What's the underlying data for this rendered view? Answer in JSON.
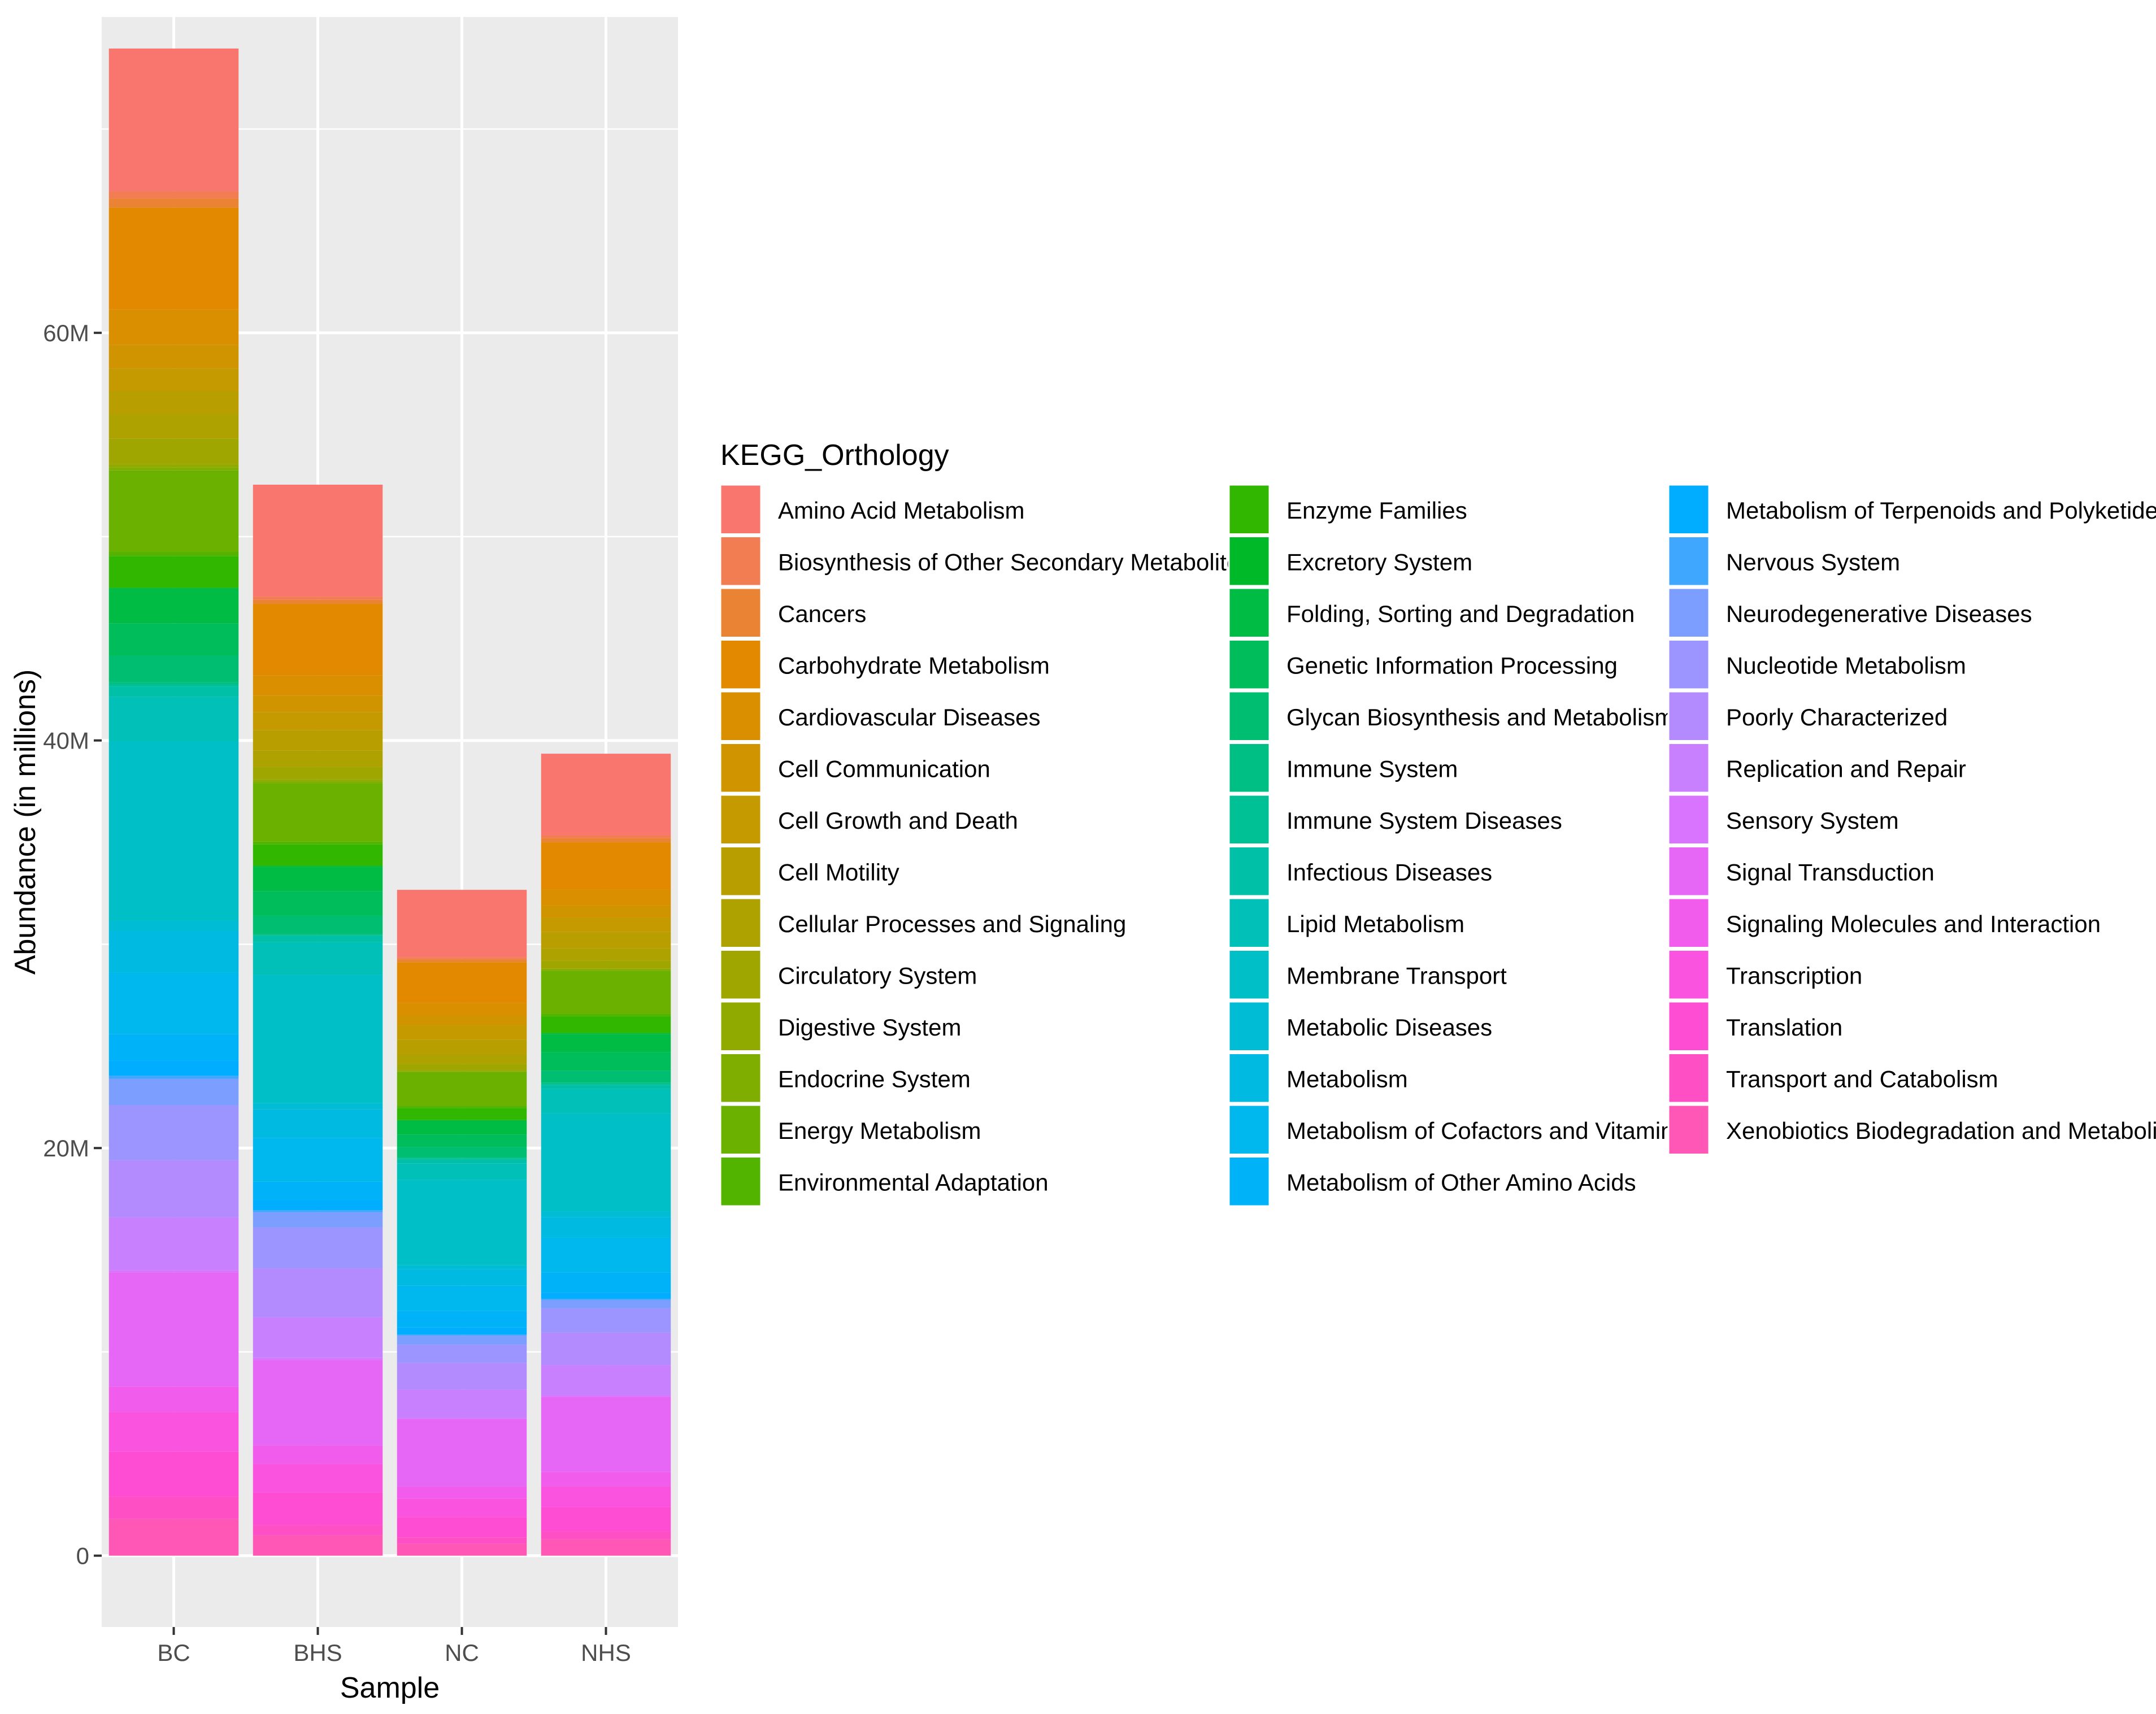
{
  "chart_data": {
    "type": "bar",
    "stacked": true,
    "title": "",
    "xlabel": "Sample",
    "ylabel": "Abundance (in millions)",
    "y_unit": "millions",
    "ylim": [
      -3.5,
      75.5
    ],
    "y_ticks": [
      0,
      20,
      40,
      60
    ],
    "y_tick_labels": [
      "0",
      "20M",
      "40M",
      "60M"
    ],
    "categories": [
      "BC",
      "BHS",
      "NC",
      "NHS"
    ],
    "legend_title": "KEGG_Orthology",
    "legend_position": "right",
    "legend_columns": 3,
    "series": [
      {
        "name": "Amino Acid Metabolism",
        "color": "#F8766D",
        "values": [
          7.0,
          5.5,
          3.3,
          4.0
        ]
      },
      {
        "name": "Biosynthesis of Other Secondary Metabolites",
        "color": "#F27D52",
        "values": [
          0.35,
          0.15,
          0.1,
          0.15
        ]
      },
      {
        "name": "Cancers",
        "color": "#EB8335",
        "values": [
          0.45,
          0.2,
          0.15,
          0.2
        ]
      },
      {
        "name": "Carbohydrate Metabolism",
        "color": "#E38900",
        "values": [
          5.0,
          3.5,
          2.0,
          2.3
        ]
      },
      {
        "name": "Cardiovascular Diseases",
        "color": "#DA8F00",
        "values": [
          1.75,
          1.0,
          0.6,
          0.8
        ]
      },
      {
        "name": "Cell Communication",
        "color": "#D09400",
        "values": [
          1.15,
          0.8,
          0.5,
          0.6
        ]
      },
      {
        "name": "Cell Growth and Death",
        "color": "#C59900",
        "values": [
          1.1,
          0.9,
          0.7,
          0.7
        ]
      },
      {
        "name": "Cell Motility",
        "color": "#B99E00",
        "values": [
          1.15,
          1.0,
          0.7,
          0.8
        ]
      },
      {
        "name": "Cellular Processes and Signaling",
        "color": "#ADA200",
        "values": [
          1.2,
          0.8,
          0.5,
          0.6
        ]
      },
      {
        "name": "Circulatory System",
        "color": "#9FA600",
        "values": [
          1.25,
          0.6,
          0.3,
          0.4
        ]
      },
      {
        "name": "Digestive System",
        "color": "#90AA00",
        "values": [
          0.15,
          0.1,
          0.05,
          0.05
        ]
      },
      {
        "name": "Endocrine System",
        "color": "#7FAE00",
        "values": [
          0.15,
          0.1,
          0.05,
          0.05
        ]
      },
      {
        "name": "Energy Metabolism",
        "color": "#6BB100",
        "values": [
          4.0,
          2.85,
          1.65,
          2.1
        ]
      },
      {
        "name": "Environmental Adaptation",
        "color": "#53B400",
        "values": [
          0.2,
          0.15,
          0.1,
          0.15
        ]
      },
      {
        "name": "Enzyme Families",
        "color": "#31B700",
        "values": [
          1.55,
          1.05,
          0.6,
          0.8
        ]
      },
      {
        "name": "Excretory System",
        "color": "#00B928",
        "values": [
          0.05,
          0.05,
          0.02,
          0.05
        ]
      },
      {
        "name": "Folding, Sorting and Degradation",
        "color": "#00BB44",
        "values": [
          1.7,
          1.2,
          0.7,
          0.9
        ]
      },
      {
        "name": "Genetic Information Processing",
        "color": "#00BD5C",
        "values": [
          1.6,
          1.2,
          0.6,
          0.9
        ]
      },
      {
        "name": "Glycan Biosynthesis and Metabolism",
        "color": "#00BE71",
        "values": [
          1.3,
          0.9,
          0.5,
          0.6
        ]
      },
      {
        "name": "Immune System",
        "color": "#00BF84",
        "values": [
          0.1,
          0.05,
          0.05,
          0.05
        ]
      },
      {
        "name": "Immune System Diseases",
        "color": "#00C096",
        "values": [
          0.1,
          0.05,
          0.05,
          0.05
        ]
      },
      {
        "name": "Infectious Diseases",
        "color": "#00C0A8",
        "values": [
          0.5,
          0.3,
          0.2,
          0.2
        ]
      },
      {
        "name": "Lipid Metabolism",
        "color": "#00C0B8",
        "values": [
          2.2,
          1.6,
          0.8,
          1.2
        ]
      },
      {
        "name": "Membrane Transport",
        "color": "#00BFC7",
        "values": [
          8.8,
          6.3,
          4.2,
          4.8
        ]
      },
      {
        "name": "Metabolic Diseases",
        "color": "#00BDD5",
        "values": [
          0.5,
          0.3,
          0.2,
          0.3
        ]
      },
      {
        "name": "Metabolism",
        "color": "#00BAE2",
        "values": [
          2.05,
          1.4,
          0.8,
          1.0
        ]
      },
      {
        "name": "Metabolism of Cofactors and Vitamins",
        "color": "#00B7EE",
        "values": [
          3.0,
          2.15,
          1.25,
          1.7
        ]
      },
      {
        "name": "Metabolism of Other Amino Acids",
        "color": "#00B2F8",
        "values": [
          1.3,
          0.95,
          0.8,
          1.0
        ]
      },
      {
        "name": "Metabolism of Terpenoids and Polyketides",
        "color": "#00ADFF",
        "values": [
          0.75,
          0.45,
          0.35,
          0.3
        ]
      },
      {
        "name": "Nervous System",
        "color": "#40A7FF",
        "values": [
          0.15,
          0.1,
          0.05,
          0.05
        ]
      },
      {
        "name": "Neurodegenerative Diseases",
        "color": "#7B9EFF",
        "values": [
          1.3,
          0.75,
          0.45,
          0.4
        ]
      },
      {
        "name": "Nucleotide Metabolism",
        "color": "#9C95FF",
        "values": [
          2.7,
          2.0,
          0.9,
          1.2
        ]
      },
      {
        "name": "Poorly Characterized",
        "color": "#B48BFF",
        "values": [
          2.8,
          2.4,
          1.3,
          1.6
        ]
      },
      {
        "name": "Replication and Repair",
        "color": "#C880FF",
        "values": [
          2.6,
          2.0,
          1.4,
          1.5
        ]
      },
      {
        "name": "Sensory System",
        "color": "#D874FD",
        "values": [
          0.1,
          0.1,
          0.05,
          0.05
        ]
      },
      {
        "name": "Signal Transduction",
        "color": "#E667F5",
        "values": [
          5.6,
          4.2,
          3.3,
          3.7
        ]
      },
      {
        "name": "Signaling Molecules and Interaction",
        "color": "#F15CEC",
        "values": [
          1.25,
          0.9,
          0.6,
          0.7
        ]
      },
      {
        "name": "Transcription",
        "color": "#FA53E0",
        "values": [
          1.95,
          1.4,
          0.9,
          1.0
        ]
      },
      {
        "name": "Translation",
        "color": "#FF4DD3",
        "values": [
          2.2,
          1.6,
          1.0,
          1.2
        ]
      },
      {
        "name": "Transport and Catabolism",
        "color": "#FF4FC4",
        "values": [
          1.1,
          0.5,
          0.3,
          0.4
        ]
      },
      {
        "name": "Xenobiotics Biodegradation and Metabolism",
        "color": "#FF57B5",
        "values": [
          1.8,
          1.0,
          0.6,
          0.8
        ]
      }
    ]
  }
}
